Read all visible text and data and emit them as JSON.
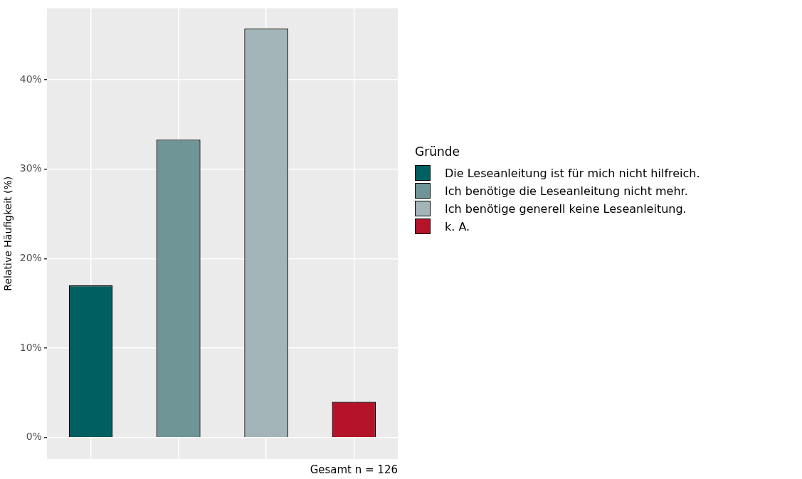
{
  "chart_data": {
    "type": "bar",
    "ylabel": "Relative Häufigkeit (%)",
    "legend_title": "Gründe",
    "categories": [
      null,
      null,
      null,
      null
    ],
    "series": [
      {
        "name": "Die Leseanleitung ist für mich nicht hilfreich.",
        "color": "#005f61",
        "values": [
          17,
          null,
          null,
          null
        ]
      },
      {
        "name": "Ich benötige die Leseanleitung nicht mehr.",
        "color": "#6f9597",
        "values": [
          null,
          33.3,
          null,
          null
        ]
      },
      {
        "name": "Ich benötige generell keine Leseanleitung.",
        "color": "#a3b5b8",
        "values": [
          null,
          null,
          45.7,
          null
        ]
      },
      {
        "name": "k. A.",
        "color": "#b5132a",
        "values": [
          null,
          null,
          null,
          4
        ]
      }
    ],
    "ylim": [
      -2.4,
      48
    ],
    "yticks": [
      {
        "value": 0,
        "label": "0%"
      },
      {
        "value": 10,
        "label": "10%"
      },
      {
        "value": 20,
        "label": "20%"
      },
      {
        "value": 30,
        "label": "30%"
      },
      {
        "value": 40,
        "label": "40%"
      }
    ],
    "grid": true,
    "legend": "right",
    "tick_labels": "y",
    "annotations": [
      "Gesamt n = 126"
    ]
  }
}
